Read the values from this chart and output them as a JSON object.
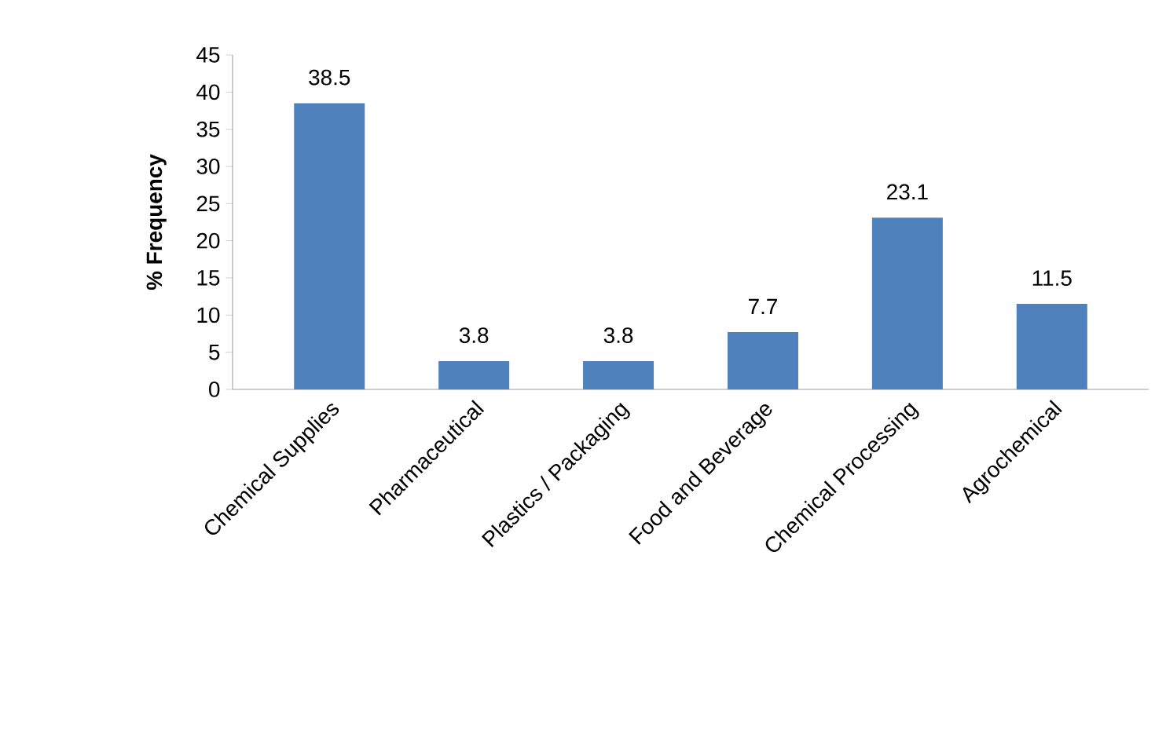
{
  "chart_data": {
    "type": "bar",
    "ylabel": "% Frequency",
    "categories": [
      "Chemical Supplies",
      "Pharmaceutical",
      "Plastics / Packaging",
      "Food and Beverage",
      "Chemical Processing",
      "Agrochemical"
    ],
    "values": [
      38.5,
      3.8,
      3.8,
      7.7,
      23.1,
      11.5
    ],
    "color": "#4f81bd",
    "ylim": [
      0,
      45
    ],
    "yticks": [
      0,
      5,
      10,
      15,
      20,
      25,
      30,
      35,
      40,
      45
    ],
    "data_labels": true
  }
}
